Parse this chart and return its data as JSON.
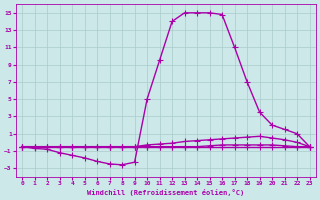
{
  "xlabel": "Windchill (Refroidissement éolien,°C)",
  "bg_color": "#cce8e8",
  "grid_color": "#aacccc",
  "line_color": "#aa00aa",
  "marker": "+",
  "marker_size": 4,
  "line_width": 1.0,
  "xlim": [
    -0.5,
    23.5
  ],
  "ylim": [
    -4,
    16
  ],
  "xticks": [
    0,
    1,
    2,
    3,
    4,
    5,
    6,
    7,
    8,
    9,
    10,
    11,
    12,
    13,
    14,
    15,
    16,
    17,
    18,
    19,
    20,
    21,
    22,
    23
  ],
  "yticks": [
    -3,
    -1,
    1,
    3,
    5,
    7,
    9,
    11,
    13,
    15
  ],
  "line1_x": [
    0,
    1,
    2,
    3,
    4,
    5,
    6,
    7,
    8,
    9,
    10,
    11,
    12,
    13,
    14,
    15,
    16,
    17,
    18,
    19,
    20,
    21,
    22,
    23
  ],
  "line1_y": [
    -0.5,
    -0.7,
    -0.8,
    -1.2,
    -1.5,
    -1.8,
    -2.2,
    -2.5,
    -2.6,
    -2.3,
    5.0,
    9.5,
    14.0,
    15.0,
    15.0,
    15.0,
    14.8,
    11.0,
    7.0,
    3.5,
    2.0,
    1.5,
    1.0,
    -0.5
  ],
  "line2_x": [
    0,
    1,
    2,
    3,
    4,
    5,
    6,
    7,
    8,
    9,
    10,
    11,
    12,
    13,
    14,
    15,
    16,
    17,
    18,
    19,
    20,
    21,
    22,
    23
  ],
  "line2_y": [
    -0.5,
    -0.5,
    -0.5,
    -0.5,
    -0.5,
    -0.5,
    -0.5,
    -0.5,
    -0.5,
    -0.5,
    -0.3,
    -0.2,
    -0.1,
    0.1,
    0.2,
    0.3,
    0.4,
    0.5,
    0.6,
    0.7,
    0.5,
    0.3,
    0.0,
    -0.5
  ],
  "line3_x": [
    0,
    1,
    2,
    3,
    4,
    5,
    6,
    7,
    8,
    9,
    10,
    11,
    12,
    13,
    14,
    15,
    16,
    17,
    18,
    19,
    20,
    21,
    22,
    23
  ],
  "line3_y": [
    -0.5,
    -0.5,
    -0.5,
    -0.5,
    -0.5,
    -0.5,
    -0.5,
    -0.5,
    -0.5,
    -0.5,
    -0.5,
    -0.5,
    -0.5,
    -0.5,
    -0.5,
    -0.4,
    -0.3,
    -0.3,
    -0.3,
    -0.3,
    -0.3,
    -0.4,
    -0.5,
    -0.5
  ],
  "line4_x": [
    0,
    1,
    2,
    3,
    4,
    5,
    6,
    7,
    8,
    9,
    10,
    11,
    12,
    13,
    14,
    15,
    16,
    17,
    18,
    19,
    20,
    21,
    22,
    23
  ],
  "line4_y": [
    -0.5,
    -0.5,
    -0.5,
    -0.5,
    -0.5,
    -0.5,
    -0.5,
    -0.5,
    -0.5,
    -0.5,
    -0.5,
    -0.5,
    -0.5,
    -0.5,
    -0.5,
    -0.5,
    -0.5,
    -0.5,
    -0.5,
    -0.5,
    -0.5,
    -0.5,
    -0.5,
    -0.5
  ]
}
